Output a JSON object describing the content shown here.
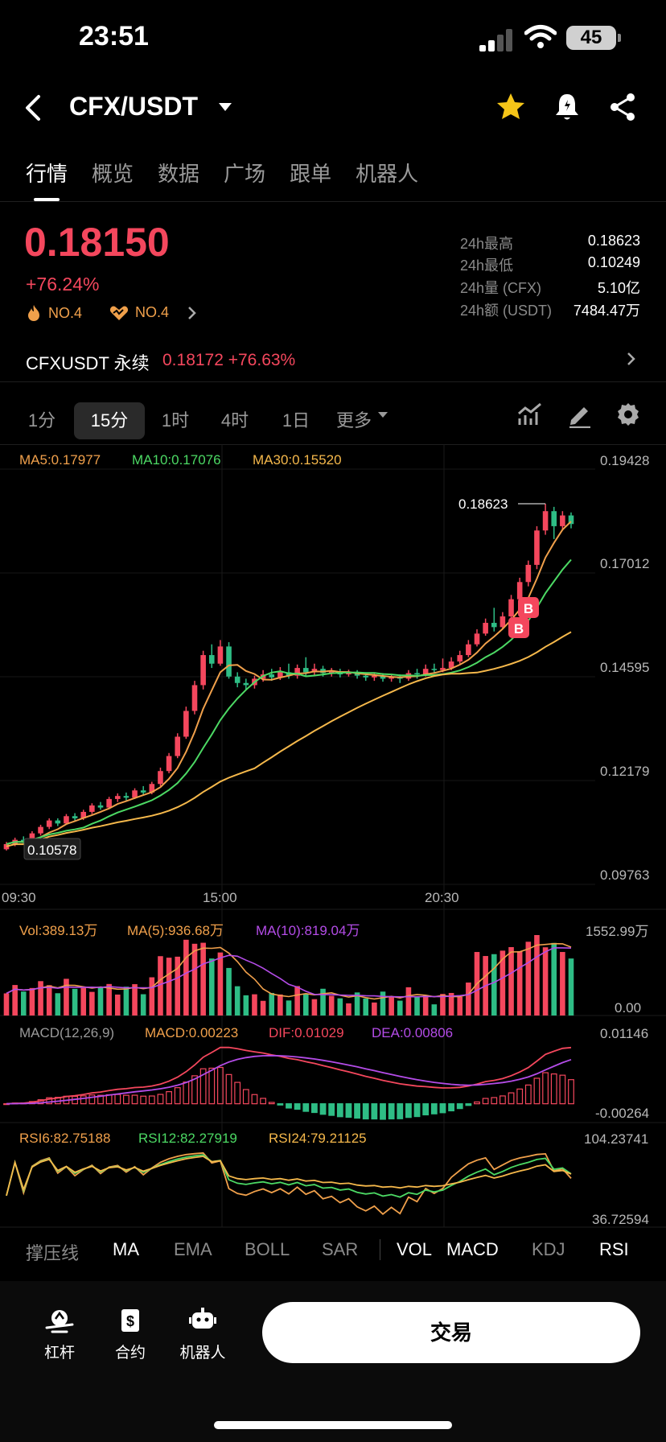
{
  "status_bar": {
    "time": "23:51",
    "battery": "45"
  },
  "header": {
    "pair": "CFX/USDT"
  },
  "tabs": [
    {
      "label": "行情",
      "active": true
    },
    {
      "label": "概览",
      "active": false
    },
    {
      "label": "数据",
      "active": false
    },
    {
      "label": "广场",
      "active": false
    },
    {
      "label": "跟单",
      "active": false
    },
    {
      "label": "机器人",
      "active": false
    }
  ],
  "ticker": {
    "price": "0.18150",
    "change": "+76.24%",
    "rank_hot": "NO.4",
    "rank_gain": "NO.4",
    "stats": [
      {
        "label": "24h最高",
        "value": "0.18623"
      },
      {
        "label": "24h最低",
        "value": "0.10249"
      },
      {
        "label": "24h量 (CFX)",
        "value": "5.10亿"
      },
      {
        "label": "24h额 (USDT)",
        "value": "7484.47万"
      }
    ]
  },
  "contract": {
    "name": "CFXUSDT 永续",
    "price": "0.18172  +76.63%"
  },
  "timeframes": [
    {
      "label": "1分",
      "active": false
    },
    {
      "label": "15分",
      "active": true
    },
    {
      "label": "1时",
      "active": false
    },
    {
      "label": "4时",
      "active": false
    },
    {
      "label": "1日",
      "active": false
    },
    {
      "label": "更多",
      "active": false
    }
  ],
  "legends": {
    "ma5": "MA5:0.17977",
    "ma10": "MA10:0.17076",
    "ma30": "MA30:0.15520",
    "vol": "Vol:389.13万",
    "vol_ma5": "MA(5):936.68万",
    "vol_ma10": "MA(10):819.04万",
    "macd_name": "MACD(12,26,9)",
    "macd": "MACD:0.00223",
    "dif": "DIF:0.01029",
    "dea": "DEA:0.00806",
    "rsi6": "RSI6:82.75188",
    "rsi12": "RSI12:82.27919",
    "rsi24": "RSI24:79.21125"
  },
  "chart_data": {
    "type": "candlestick",
    "interval": "15分",
    "price_axis": [
      "0.19428",
      "0.17012",
      "0.14595",
      "0.12179",
      "0.09763"
    ],
    "time_axis": [
      "09:30",
      "15:00",
      "20:30"
    ],
    "high_marker": "0.18623",
    "low_marker": "0.10578",
    "buy_markers": [
      "B",
      "B"
    ],
    "volume_axis": [
      "1552.99万",
      "0.00"
    ],
    "macd_axis": [
      "0.01146",
      "-0.00264"
    ],
    "rsi_axis": [
      "104.23741",
      "36.72594"
    ],
    "candles": [
      [
        0.1058,
        0.107,
        0.1055,
        0.1075
      ],
      [
        0.107,
        0.108,
        0.1065,
        0.1085
      ],
      [
        0.108,
        0.1075,
        0.107,
        0.1088
      ],
      [
        0.1075,
        0.1095,
        0.1072,
        0.11
      ],
      [
        0.1095,
        0.111,
        0.109,
        0.1115
      ],
      [
        0.111,
        0.1125,
        0.1105,
        0.113
      ],
      [
        0.1125,
        0.1118,
        0.1112,
        0.113
      ],
      [
        0.1118,
        0.1135,
        0.1115,
        0.114
      ],
      [
        0.1135,
        0.113,
        0.1125,
        0.1142
      ],
      [
        0.113,
        0.1145,
        0.1126,
        0.115
      ],
      [
        0.1145,
        0.116,
        0.114,
        0.1165
      ],
      [
        0.116,
        0.1155,
        0.115,
        0.1168
      ],
      [
        0.1155,
        0.1175,
        0.1152,
        0.118
      ],
      [
        0.1175,
        0.1182,
        0.1168,
        0.1188
      ],
      [
        0.1182,
        0.1178,
        0.1172,
        0.119
      ],
      [
        0.1178,
        0.1195,
        0.1175,
        0.12
      ],
      [
        0.1195,
        0.119,
        0.1185,
        0.1205
      ],
      [
        0.119,
        0.121,
        0.1186,
        0.1215
      ],
      [
        0.121,
        0.124,
        0.1205,
        0.1248
      ],
      [
        0.124,
        0.1275,
        0.1235,
        0.1282
      ],
      [
        0.1275,
        0.132,
        0.127,
        0.1328
      ],
      [
        0.132,
        0.138,
        0.1315,
        0.139
      ],
      [
        0.138,
        0.144,
        0.1372,
        0.145
      ],
      [
        0.144,
        0.151,
        0.143,
        0.152
      ],
      [
        0.151,
        0.149,
        0.148,
        0.1535
      ],
      [
        0.149,
        0.153,
        0.1485,
        0.1545
      ],
      [
        0.153,
        0.146,
        0.1455,
        0.154
      ],
      [
        0.146,
        0.1445,
        0.1435,
        0.147
      ],
      [
        0.1445,
        0.144,
        0.143,
        0.1455
      ],
      [
        0.144,
        0.1455,
        0.1432,
        0.1462
      ],
      [
        0.1455,
        0.1465,
        0.1448,
        0.1475
      ],
      [
        0.1465,
        0.1458,
        0.145,
        0.1478
      ],
      [
        0.1458,
        0.147,
        0.1452,
        0.1482
      ],
      [
        0.147,
        0.1462,
        0.1455,
        0.149
      ],
      [
        0.1462,
        0.148,
        0.1455,
        0.1488
      ],
      [
        0.148,
        0.147,
        0.1462,
        0.1505
      ],
      [
        0.147,
        0.1478,
        0.1462,
        0.149
      ],
      [
        0.1478,
        0.1468,
        0.146,
        0.1485
      ],
      [
        0.1468,
        0.1472,
        0.146,
        0.148
      ],
      [
        0.1472,
        0.1465,
        0.1458,
        0.1478
      ],
      [
        0.1465,
        0.147,
        0.146,
        0.1476
      ],
      [
        0.147,
        0.1462,
        0.1455,
        0.1475
      ],
      [
        0.1462,
        0.1458,
        0.145,
        0.147
      ],
      [
        0.1458,
        0.1462,
        0.145,
        0.1468
      ],
      [
        0.1462,
        0.1455,
        0.1448,
        0.1468
      ],
      [
        0.1455,
        0.146,
        0.1448,
        0.1466
      ],
      [
        0.146,
        0.1455,
        0.1445,
        0.1465
      ],
      [
        0.1455,
        0.1468,
        0.145,
        0.1475
      ],
      [
        0.1468,
        0.1465,
        0.1455,
        0.1478
      ],
      [
        0.1465,
        0.1478,
        0.146,
        0.1488
      ],
      [
        0.1478,
        0.1475,
        0.1468,
        0.149
      ],
      [
        0.1475,
        0.148,
        0.147,
        0.1502
      ],
      [
        0.148,
        0.1495,
        0.1475,
        0.1505
      ],
      [
        0.1495,
        0.151,
        0.149,
        0.152
      ],
      [
        0.151,
        0.1535,
        0.1505,
        0.1545
      ],
      [
        0.1535,
        0.156,
        0.153,
        0.157
      ],
      [
        0.156,
        0.1585,
        0.1555,
        0.1595
      ],
      [
        0.1585,
        0.1575,
        0.1565,
        0.162
      ],
      [
        0.1575,
        0.16,
        0.157,
        0.161
      ],
      [
        0.16,
        0.164,
        0.1595,
        0.165
      ],
      [
        0.164,
        0.168,
        0.163,
        0.169
      ],
      [
        0.168,
        0.172,
        0.167,
        0.173
      ],
      [
        0.172,
        0.18,
        0.171,
        0.181
      ],
      [
        0.18,
        0.1845,
        0.179,
        0.1862
      ],
      [
        0.1845,
        0.181,
        0.178,
        0.1855
      ],
      [
        0.181,
        0.1835,
        0.18,
        0.1845
      ],
      [
        0.1835,
        0.1815,
        0.1805,
        0.1842
      ]
    ]
  },
  "indicators": {
    "first": "撑压线",
    "main": [
      "MA",
      "EMA",
      "BOLL",
      "SAR"
    ],
    "sub": [
      {
        "label": "VOL",
        "on": true
      },
      {
        "label": "MACD",
        "on": true
      },
      {
        "label": "KDJ",
        "on": false
      },
      {
        "label": "RSI",
        "on": true
      }
    ]
  },
  "bottom_nav": [
    {
      "label": "杠杆",
      "icon": "leverage-icon"
    },
    {
      "label": "合约",
      "icon": "contract-icon"
    },
    {
      "label": "机器人",
      "icon": "robot-icon"
    }
  ],
  "trade_button": "交易",
  "colors": {
    "up": "#f4475d",
    "down": "#2ebd85",
    "ma5": "#f0a04b",
    "ma10": "#4cd964",
    "ma30": "#f5b84b",
    "dif": "#f4475d",
    "dea": "#b44ce8"
  }
}
